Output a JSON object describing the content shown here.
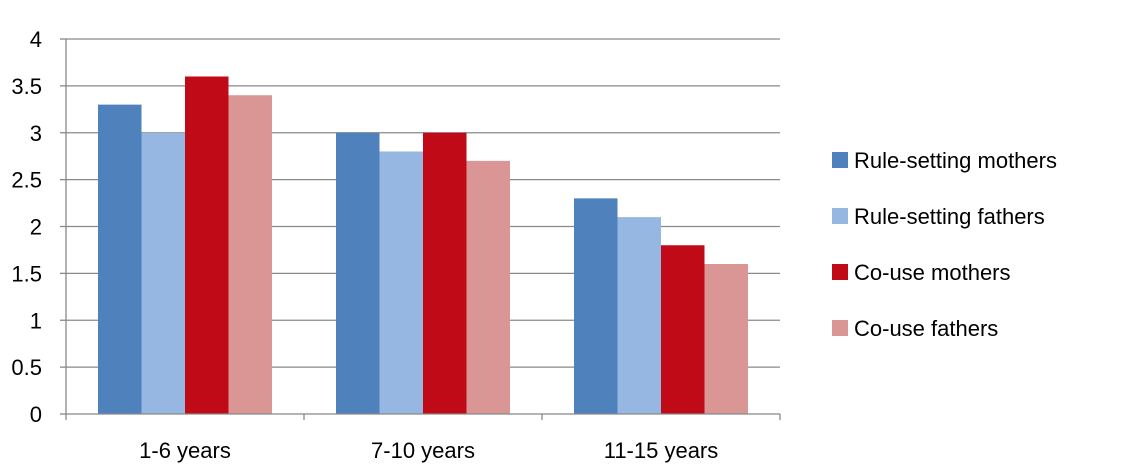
{
  "chart_data": {
    "type": "bar",
    "title": "",
    "xlabel": "",
    "ylabel": "",
    "categories": [
      "1-6 years",
      "7-10 years",
      "11-15 years"
    ],
    "ylim": [
      0,
      4
    ],
    "yticks": [
      "0",
      "0.5",
      "1",
      "1.5",
      "2",
      "2.5",
      "3",
      "3.5",
      "4"
    ],
    "grid": true,
    "legend_position": "right",
    "series": [
      {
        "name": "Rule-setting mothers",
        "color": "#4F81BD",
        "values": [
          3.3,
          3.0,
          2.3
        ]
      },
      {
        "name": "Rule-setting fathers",
        "color": "#95B7E2",
        "values": [
          3.0,
          2.8,
          2.1
        ]
      },
      {
        "name": "Co-use mothers",
        "color": "#C00A17",
        "values": [
          3.6,
          3.0,
          1.8
        ]
      },
      {
        "name": "Co-use fathers",
        "color": "#D99694",
        "values": [
          3.4,
          2.7,
          1.6
        ]
      }
    ]
  }
}
